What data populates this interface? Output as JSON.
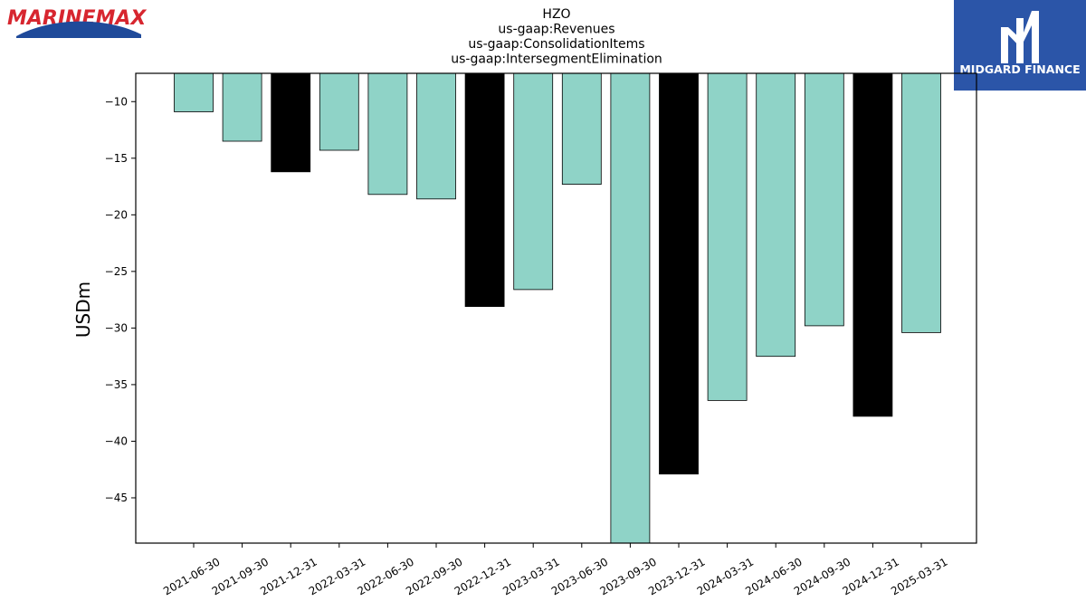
{
  "brand_left": {
    "name": "MARINEMAX",
    "text_color": "#d7262f",
    "wave_color": "#1f4a9a"
  },
  "brand_right": {
    "name": "MIDGARD FINANCE",
    "bg_color": "#2b55a8",
    "text_color": "#ffffff"
  },
  "chart_data": {
    "type": "bar",
    "title_lines": [
      "HZO",
      "us-gaap:Revenues",
      "us-gaap:ConsolidationItems",
      "us-gaap:IntersegmentElimination"
    ],
    "ylabel": "USDm",
    "xlabel": "",
    "categories": [
      "2021-06-30",
      "2021-09-30",
      "2021-12-31",
      "2022-03-31",
      "2022-06-30",
      "2022-09-30",
      "2022-12-31",
      "2023-03-31",
      "2023-06-30",
      "2023-09-30",
      "2023-12-31",
      "2024-03-31",
      "2024-06-30",
      "2024-09-30",
      "2024-12-31",
      "2025-03-31"
    ],
    "values": [
      -10.9,
      -13.5,
      -16.2,
      -14.3,
      -18.2,
      -18.6,
      -28.1,
      -26.6,
      -17.3,
      -49.0,
      -42.9,
      -36.4,
      -32.5,
      -29.8,
      -37.8,
      -30.4
    ],
    "highlight": [
      false,
      false,
      true,
      false,
      false,
      false,
      true,
      false,
      false,
      false,
      true,
      false,
      false,
      false,
      true,
      false
    ],
    "colors": {
      "normal": "#8fd3c7",
      "highlight": "#000000",
      "edge": "#000000"
    },
    "ylim": [
      -49.0,
      -7.5
    ],
    "yticks": [
      -10,
      -15,
      -20,
      -25,
      -30,
      -35,
      -40,
      -45
    ],
    "ytick_labels": [
      "−10",
      "−15",
      "−20",
      "−25",
      "−30",
      "−35",
      "−40",
      "−45"
    ],
    "grid": false,
    "legend": "none"
  }
}
